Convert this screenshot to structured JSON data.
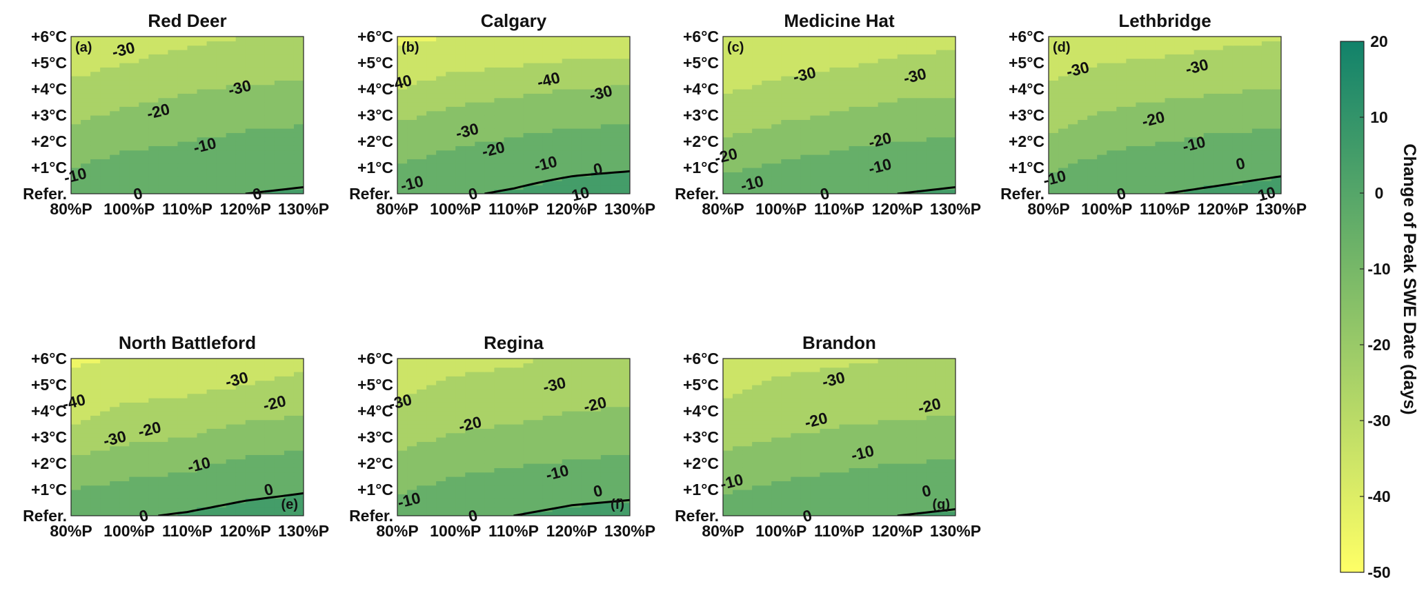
{
  "chart_data": {
    "type": "heatmap",
    "x_tick_labels": [
      "80%P",
      "100%P",
      "110%P",
      "120%P",
      "130%P"
    ],
    "y_tick_labels": [
      "Refer.",
      "+1°C",
      "+2°C",
      "+3°C",
      "+4°C",
      "+5°C",
      "+6°C"
    ],
    "x_categories": [
      "80%P",
      "100%P",
      "110%P",
      "120%P",
      "130%P"
    ],
    "y_categories": [
      "Refer.",
      "+1°C",
      "+2°C",
      "+3°C",
      "+4°C",
      "+5°C",
      "+6°C"
    ],
    "colorbar": {
      "label": "Change of Peak SWE Date (days)",
      "range": [
        -50,
        20
      ],
      "ticks": [
        20,
        10,
        0,
        -10,
        -20,
        -30,
        -40,
        -50
      ],
      "colors": {
        "-50": "#ffff66",
        "20": "#11826a"
      }
    },
    "panels": [
      {
        "title": "Red Deer",
        "label": "(a)",
        "label_position": "top-left",
        "values": [
          [
            -5,
            -2,
            -1,
            0,
            1
          ],
          [
            -10,
            -6,
            -5,
            -4,
            -3
          ],
          [
            -16,
            -12,
            -10,
            -8,
            -7
          ],
          [
            -22,
            -18,
            -15,
            -13,
            -12
          ],
          [
            -28,
            -24,
            -21,
            -19,
            -18
          ],
          [
            -33,
            -30,
            -27,
            -25,
            -24
          ],
          [
            -36,
            -34,
            -32,
            -30,
            -29
          ]
        ],
        "contour_labels": [
          {
            "text": "-30",
            "x": 0.9,
            "y": 5.5
          },
          {
            "text": "-30",
            "x": 2.9,
            "y": 4.05
          },
          {
            "text": "-20",
            "x": 1.5,
            "y": 3.15
          },
          {
            "text": "-10",
            "x": 2.3,
            "y": 1.85
          },
          {
            "text": "-10",
            "x": 0.07,
            "y": 0.7
          },
          {
            "text": "0",
            "x": 3.2,
            "y": 0.0
          },
          {
            "text": "0",
            "x": 1.15,
            "y": 0.0
          }
        ]
      },
      {
        "title": "Calgary",
        "label": "(b)",
        "label_position": "top-left",
        "values": [
          [
            -4,
            -1,
            1,
            4,
            6
          ],
          [
            -9,
            -6,
            -4,
            -2,
            -1
          ],
          [
            -15,
            -11,
            -9,
            -7,
            -6
          ],
          [
            -22,
            -17,
            -15,
            -13,
            -12
          ],
          [
            -30,
            -25,
            -22,
            -20,
            -19
          ],
          [
            -36,
            -33,
            -31,
            -29,
            -28
          ],
          [
            -42,
            -40,
            -39,
            -37,
            -36
          ]
        ],
        "contour_labels": [
          {
            "text": "-40",
            "x": 0.05,
            "y": 4.25
          },
          {
            "text": "-40",
            "x": 2.6,
            "y": 4.35
          },
          {
            "text": "-30",
            "x": 3.5,
            "y": 3.85
          },
          {
            "text": "-30",
            "x": 1.2,
            "y": 2.4
          },
          {
            "text": "-20",
            "x": 1.65,
            "y": 1.7
          },
          {
            "text": "-10",
            "x": 2.55,
            "y": 1.15
          },
          {
            "text": "-10",
            "x": 0.25,
            "y": 0.4
          },
          {
            "text": "0",
            "x": 3.45,
            "y": 0.95
          },
          {
            "text": "0",
            "x": 1.3,
            "y": 0.0
          },
          {
            "text": "10",
            "x": 3.15,
            "y": 0.0
          }
        ]
      },
      {
        "title": "Medicine Hat",
        "label": "(c)",
        "label_position": "top-left",
        "values": [
          [
            -5,
            -2,
            -1,
            0,
            1
          ],
          [
            -12,
            -8,
            -6,
            -4,
            -3
          ],
          [
            -19,
            -15,
            -12,
            -10,
            -9
          ],
          [
            -26,
            -22,
            -19,
            -16,
            -15
          ],
          [
            -31,
            -28,
            -26,
            -23,
            -22
          ],
          [
            -35,
            -33,
            -31,
            -29,
            -28
          ],
          [
            -38,
            -36,
            -35,
            -33,
            -32
          ]
        ],
        "contour_labels": [
          {
            "text": "-30",
            "x": 3.3,
            "y": 4.5
          },
          {
            "text": "-30",
            "x": 1.4,
            "y": 4.55
          },
          {
            "text": "-20",
            "x": 2.7,
            "y": 2.05
          },
          {
            "text": "-20",
            "x": 0.05,
            "y": 1.45
          },
          {
            "text": "-10",
            "x": 2.7,
            "y": 1.05
          },
          {
            "text": "-10",
            "x": 0.5,
            "y": 0.4
          },
          {
            "text": "0",
            "x": 1.75,
            "y": 0.0
          }
        ]
      },
      {
        "title": "Lethbridge",
        "label": "(d)",
        "label_position": "top-left",
        "values": [
          [
            -5,
            -1,
            0,
            1,
            2
          ],
          [
            -11,
            -6,
            -3,
            -2,
            -1
          ],
          [
            -18,
            -13,
            -10,
            -8,
            -7
          ],
          [
            -24,
            -19,
            -16,
            -14,
            -13
          ],
          [
            -29,
            -25,
            -23,
            -21,
            -20
          ],
          [
            -33,
            -30,
            -29,
            -27,
            -26
          ],
          [
            -36,
            -34,
            -33,
            -32,
            -31
          ]
        ],
        "contour_labels": [
          {
            "text": "-30",
            "x": 0.5,
            "y": 4.75
          },
          {
            "text": "-30",
            "x": 2.55,
            "y": 4.85
          },
          {
            "text": "-20",
            "x": 1.8,
            "y": 2.85
          },
          {
            "text": "-10",
            "x": 2.5,
            "y": 1.9
          },
          {
            "text": "-10",
            "x": 0.1,
            "y": 0.6
          },
          {
            "text": "0",
            "x": 3.3,
            "y": 1.15
          },
          {
            "text": "0",
            "x": 1.25,
            "y": 0.0
          },
          {
            "text": "10",
            "x": 3.75,
            "y": 0.0
          }
        ]
      },
      {
        "title": "North Battleford",
        "label": "(e)",
        "label_position": "bottom-right",
        "values": [
          [
            -3,
            -1,
            1,
            4,
            6
          ],
          [
            -10,
            -7,
            -6,
            -3,
            -1
          ],
          [
            -18,
            -14,
            -12,
            -8,
            -6
          ],
          [
            -27,
            -22,
            -20,
            -16,
            -14
          ],
          [
            -33,
            -28,
            -26,
            -23,
            -21
          ],
          [
            -37,
            -34,
            -33,
            -30,
            -28
          ],
          [
            -42,
            -39,
            -37,
            -34,
            -32
          ]
        ],
        "contour_labels": [
          {
            "text": "-40",
            "x": 0.05,
            "y": 4.35
          },
          {
            "text": "-30",
            "x": 0.75,
            "y": 2.95
          },
          {
            "text": "-30",
            "x": 2.85,
            "y": 5.2
          },
          {
            "text": "-20",
            "x": 1.35,
            "y": 3.3
          },
          {
            "text": "-20",
            "x": 3.5,
            "y": 4.3
          },
          {
            "text": "-10",
            "x": 2.2,
            "y": 1.95
          },
          {
            "text": "0",
            "x": 3.4,
            "y": 1.0
          },
          {
            "text": "0",
            "x": 1.25,
            "y": 0.0
          }
        ]
      },
      {
        "title": "Regina",
        "label": "(f)",
        "label_position": "bottom-right",
        "values": [
          [
            -4,
            -1,
            0,
            2,
            3
          ],
          [
            -11,
            -7,
            -5,
            -3,
            -2
          ],
          [
            -17,
            -13,
            -11,
            -9,
            -8
          ],
          [
            -23,
            -19,
            -17,
            -15,
            -14
          ],
          [
            -28,
            -25,
            -23,
            -20,
            -19
          ],
          [
            -32,
            -29,
            -28,
            -26,
            -25
          ],
          [
            -35,
            -32,
            -31,
            -29,
            -28
          ]
        ],
        "contour_labels": [
          {
            "text": "-30",
            "x": 0.05,
            "y": 4.35
          },
          {
            "text": "-30",
            "x": 2.7,
            "y": 5.0
          },
          {
            "text": "-20",
            "x": 3.4,
            "y": 4.25
          },
          {
            "text": "-20",
            "x": 1.25,
            "y": 3.5
          },
          {
            "text": "-10",
            "x": 2.75,
            "y": 1.65
          },
          {
            "text": "-10",
            "x": 0.2,
            "y": 0.6
          },
          {
            "text": "0",
            "x": 3.45,
            "y": 0.95
          },
          {
            "text": "0",
            "x": 1.3,
            "y": 0.0
          }
        ]
      },
      {
        "title": "Brandon",
        "label": "(g)",
        "label_position": "bottom-right",
        "values": [
          [
            -5,
            -2,
            -1,
            0,
            1
          ],
          [
            -11,
            -8,
            -6,
            -4,
            -3
          ],
          [
            -17,
            -14,
            -12,
            -10,
            -9
          ],
          [
            -23,
            -20,
            -18,
            -16,
            -15
          ],
          [
            -28,
            -25,
            -23,
            -22,
            -21
          ],
          [
            -32,
            -29,
            -28,
            -27,
            -26
          ],
          [
            -35,
            -32,
            -31,
            -30,
            -29
          ]
        ],
        "contour_labels": [
          {
            "text": "-30",
            "x": 1.9,
            "y": 5.2
          },
          {
            "text": "-20",
            "x": 3.55,
            "y": 4.2
          },
          {
            "text": "-20",
            "x": 1.6,
            "y": 3.65
          },
          {
            "text": "-10",
            "x": 2.4,
            "y": 2.4
          },
          {
            "text": "-10",
            "x": 0.15,
            "y": 1.3
          },
          {
            "text": "0",
            "x": 3.5,
            "y": 0.95
          },
          {
            "text": "0",
            "x": 1.45,
            "y": 0.0
          }
        ]
      }
    ]
  }
}
